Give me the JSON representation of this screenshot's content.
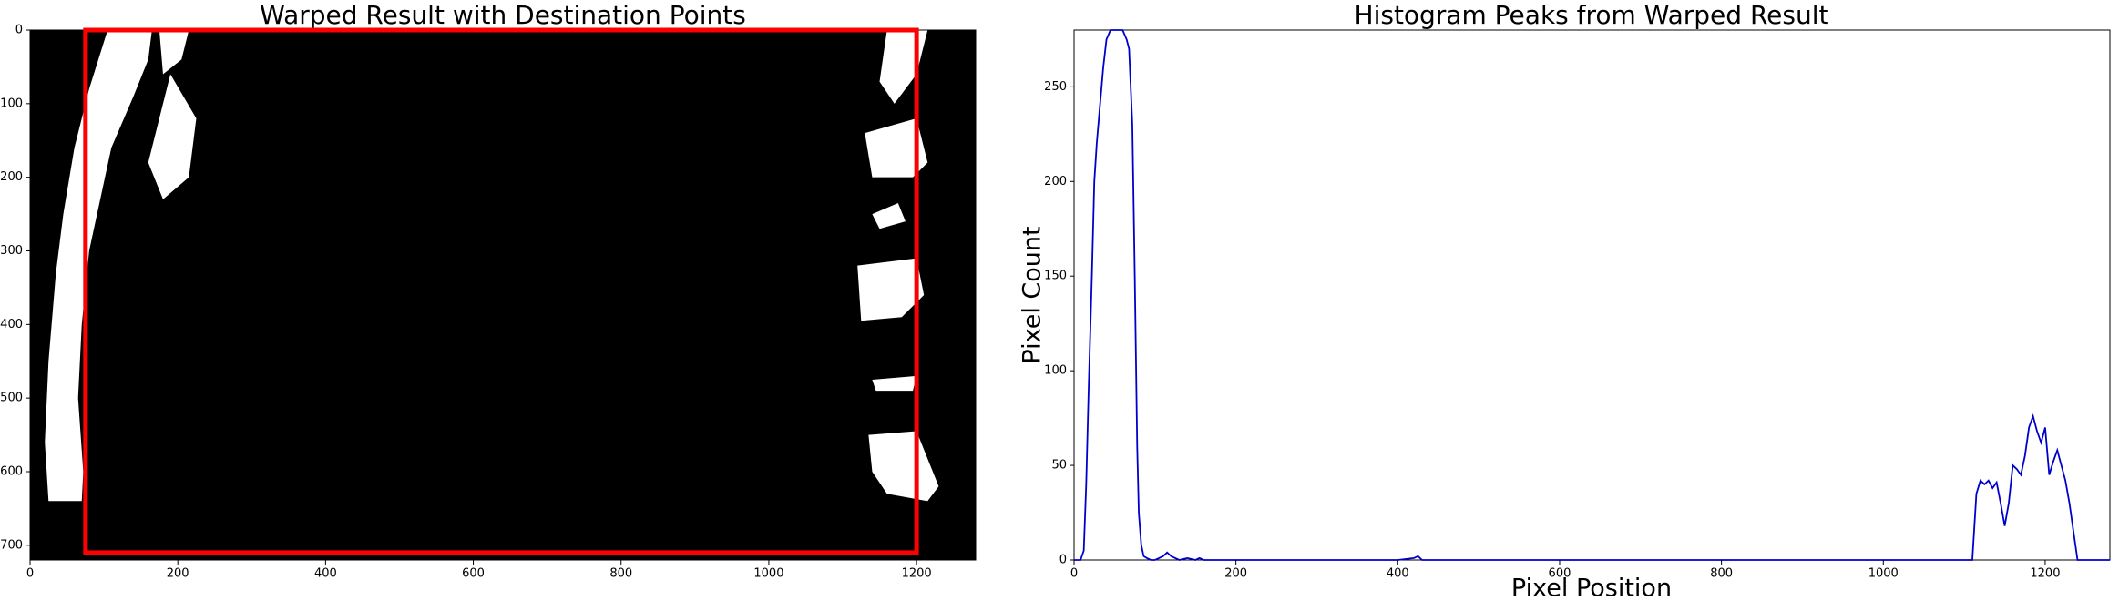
{
  "chart_data": [
    {
      "type": "image",
      "title": "Warped Result with Destination Points",
      "xlim": [
        0,
        1280
      ],
      "ylim": [
        720,
        0
      ],
      "xticks": [
        0,
        200,
        400,
        600,
        800,
        1000,
        1200
      ],
      "yticks": [
        0,
        100,
        200,
        300,
        400,
        500,
        600,
        700
      ],
      "box": {
        "x": [
          75,
          1200
        ],
        "y": [
          0,
          710
        ],
        "color": "#ff0000"
      }
    },
    {
      "type": "line",
      "title": "Histogram Peaks from Warped Result",
      "x_label": "Pixel Position",
      "y_label": "Pixel Count",
      "xlim": [
        0,
        1280
      ],
      "ylim": [
        0,
        280
      ],
      "xticks": [
        0,
        200,
        400,
        600,
        800,
        1000,
        1200
      ],
      "yticks": [
        0,
        50,
        100,
        150,
        200,
        250
      ],
      "x": [
        0,
        8,
        12,
        15,
        18,
        22,
        25,
        28,
        32,
        36,
        40,
        45,
        50,
        55,
        60,
        65,
        68,
        72,
        75,
        78,
        80,
        83,
        86,
        90,
        95,
        100,
        110,
        115,
        120,
        125,
        130,
        140,
        150,
        155,
        160,
        200,
        400,
        420,
        425,
        430,
        1100,
        1110,
        1115,
        1120,
        1125,
        1130,
        1135,
        1140,
        1145,
        1150,
        1155,
        1160,
        1165,
        1170,
        1175,
        1180,
        1185,
        1190,
        1195,
        1200,
        1205,
        1210,
        1215,
        1220,
        1225,
        1230,
        1235,
        1240,
        1280
      ],
      "series": [
        {
          "color": "#0000cc",
          "values": [
            0,
            0,
            5,
            40,
            90,
            150,
            200,
            220,
            240,
            260,
            275,
            280,
            280,
            280,
            280,
            275,
            270,
            230,
            150,
            60,
            25,
            8,
            2,
            1,
            0,
            0,
            2,
            4,
            2,
            1,
            0,
            1,
            0,
            1,
            0,
            0,
            0,
            1,
            2,
            0,
            0,
            0,
            35,
            42,
            40,
            42,
            38,
            41,
            30,
            18,
            30,
            50,
            48,
            45,
            55,
            70,
            76,
            68,
            62,
            70,
            45,
            52,
            58,
            50,
            42,
            30,
            15,
            0,
            0
          ]
        }
      ]
    }
  ]
}
